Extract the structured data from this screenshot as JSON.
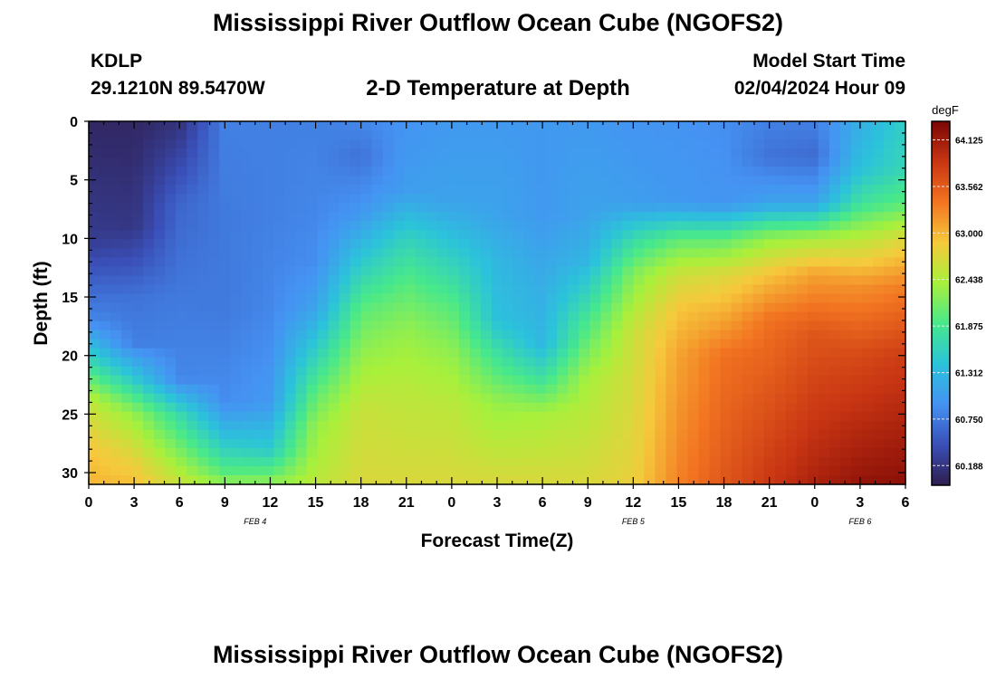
{
  "header": {
    "title": "Mississippi River Outflow Ocean Cube (NGOFS2)",
    "station_id": "KDLP",
    "station_coords": "29.1210N  89.5470W",
    "subtitle": "2-D Temperature at Depth",
    "model_start_label": "Model Start Time",
    "model_start_value": "02/04/2024 Hour 09"
  },
  "footer": {
    "title": "Mississippi River Outflow Ocean Cube (NGOFS2)"
  },
  "chart_data": {
    "type": "heatmap",
    "title": "2-D Temperature at Depth",
    "xlabel": "Forecast Time(Z)",
    "ylabel": "Depth (ft)",
    "x_range_hours": [
      0,
      54
    ],
    "y_range_ft": [
      0,
      31
    ],
    "x_tick_labels": [
      "0",
      "3",
      "6",
      "9",
      "12",
      "15",
      "18",
      "21",
      "0",
      "3",
      "6",
      "9",
      "12",
      "15",
      "18",
      "21",
      "0",
      "3",
      "6"
    ],
    "y_ticks": [
      0,
      5,
      10,
      15,
      20,
      25,
      30
    ],
    "y_tick_labels": [
      "0",
      "5",
      "10",
      "15",
      "20",
      "25",
      "30"
    ],
    "date_labels": [
      {
        "label": "FEB 4",
        "hour": 11
      },
      {
        "label": "FEB 5",
        "hour": 36
      },
      {
        "label": "FEB 6",
        "hour": 51
      }
    ],
    "colorbar": {
      "unit": "degF",
      "min": 59.95,
      "max": 64.35,
      "ticks": [
        64.125,
        63.562,
        63.0,
        62.438,
        61.875,
        61.312,
        60.75,
        60.188
      ],
      "tick_labels": [
        "64.125",
        "63.562",
        "63.000",
        "62.438",
        "61.875",
        "61.312",
        "60.750",
        "60.188"
      ]
    },
    "colormap": [
      "#2f1d4e",
      "#3a4fb7",
      "#4592f3",
      "#2bc3da",
      "#47e88c",
      "#a8f03b",
      "#f6c93c",
      "#f27421",
      "#c83513",
      "#7a0605"
    ],
    "grid_resolution": {
      "nx": 75,
      "ny": 40
    },
    "profiles": [
      {
        "hour": 0,
        "depths": [
          0,
          10,
          14,
          17,
          21,
          24,
          28,
          31
        ],
        "temps": [
          60.05,
          60.25,
          60.6,
          60.85,
          61.8,
          62.55,
          62.9,
          63.0
        ]
      },
      {
        "hour": 3,
        "depths": [
          0,
          9,
          15,
          19,
          22,
          25,
          29,
          31
        ],
        "temps": [
          60.05,
          60.2,
          60.7,
          60.8,
          61.5,
          62.3,
          62.8,
          62.95
        ]
      },
      {
        "hour": 6,
        "depths": [
          0,
          7,
          15,
          22,
          25,
          29,
          31
        ],
        "temps": [
          60.15,
          60.6,
          60.75,
          60.85,
          61.7,
          62.3,
          62.6
        ]
      },
      {
        "hour": 9,
        "depths": [
          0,
          8,
          16,
          24,
          27,
          30,
          31
        ],
        "temps": [
          60.8,
          60.75,
          60.75,
          60.9,
          61.4,
          62.0,
          62.3
        ]
      },
      {
        "hour": 12,
        "depths": [
          0,
          8,
          16,
          24,
          28,
          30,
          31
        ],
        "temps": [
          60.8,
          60.8,
          60.85,
          61.0,
          61.5,
          62.0,
          62.3
        ]
      },
      {
        "hour": 15,
        "depths": [
          0,
          8,
          12,
          16,
          20,
          23,
          26,
          31
        ],
        "temps": [
          60.8,
          60.85,
          60.9,
          61.1,
          61.6,
          62.0,
          62.3,
          62.5
        ]
      },
      {
        "hour": 18,
        "depths": [
          0,
          3,
          8,
          12,
          16,
          20,
          25,
          31
        ],
        "temps": [
          60.85,
          60.7,
          61.0,
          61.5,
          62.0,
          62.3,
          62.6,
          62.7
        ]
      },
      {
        "hour": 21,
        "depths": [
          0,
          6,
          10,
          14,
          18,
          23,
          31
        ],
        "temps": [
          60.95,
          61.05,
          61.6,
          62.0,
          62.3,
          62.5,
          62.7
        ]
      },
      {
        "hour": 24,
        "depths": [
          0,
          7,
          11,
          16,
          20,
          24,
          31
        ],
        "temps": [
          61.0,
          61.1,
          61.5,
          62.0,
          62.3,
          62.5,
          62.7
        ]
      },
      {
        "hour": 27,
        "depths": [
          0,
          8,
          12,
          17,
          20,
          24,
          31
        ],
        "temps": [
          61.0,
          61.1,
          61.3,
          61.4,
          61.8,
          62.3,
          62.7
        ]
      },
      {
        "hour": 30,
        "depths": [
          0,
          8,
          14,
          19,
          22,
          25,
          31
        ],
        "temps": [
          61.0,
          61.0,
          61.2,
          61.3,
          61.8,
          62.4,
          62.7
        ]
      },
      {
        "hour": 33,
        "depths": [
          0,
          8,
          12,
          17,
          22,
          31
        ],
        "temps": [
          61.0,
          61.1,
          61.3,
          61.9,
          62.4,
          62.7
        ]
      },
      {
        "hour": 36,
        "depths": [
          0,
          7,
          10,
          13,
          18,
          31
        ],
        "temps": [
          60.95,
          61.05,
          61.7,
          62.2,
          62.6,
          62.8
        ]
      },
      {
        "hour": 39,
        "depths": [
          0,
          7,
          10,
          13,
          16,
          20,
          31
        ],
        "temps": [
          60.95,
          61.0,
          62.0,
          62.6,
          62.9,
          63.1,
          63.3
        ]
      },
      {
        "hour": 42,
        "depths": [
          0,
          7,
          10,
          13,
          17,
          20,
          31
        ],
        "temps": [
          60.9,
          60.95,
          62.0,
          62.7,
          63.1,
          63.4,
          63.6
        ]
      },
      {
        "hour": 45,
        "depths": [
          0,
          3,
          7,
          10,
          13,
          17,
          31
        ],
        "temps": [
          60.8,
          60.7,
          61.1,
          62.3,
          62.9,
          63.4,
          63.85
        ]
      },
      {
        "hour": 48,
        "depths": [
          0,
          3,
          7,
          10,
          13,
          18,
          31
        ],
        "temps": [
          60.8,
          60.65,
          61.1,
          62.4,
          63.1,
          63.6,
          64.05
        ]
      },
      {
        "hour": 51,
        "depths": [
          0,
          4,
          7,
          10,
          14,
          20,
          31
        ],
        "temps": [
          61.2,
          61.4,
          61.8,
          62.5,
          63.2,
          63.7,
          64.2
        ]
      },
      {
        "hour": 54,
        "depths": [
          0,
          4,
          7,
          10,
          14,
          20,
          31
        ],
        "temps": [
          61.55,
          61.65,
          62.0,
          62.7,
          63.3,
          63.8,
          64.25
        ]
      }
    ]
  }
}
